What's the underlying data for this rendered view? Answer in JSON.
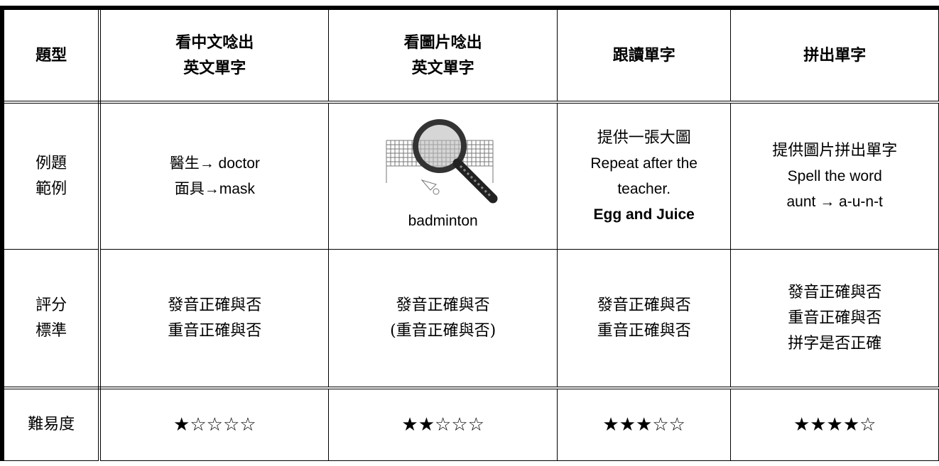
{
  "table": {
    "rows": [
      [
        [
          "題型"
        ],
        [
          "看中文唸出",
          "英文單字"
        ],
        [
          "看圖片唸出",
          "英文單字"
        ],
        [
          "跟讀單字"
        ],
        [
          "拼出單字"
        ]
      ],
      [
        [
          "例題",
          "範例"
        ],
        [
          "醫生→ doctor",
          "面具→mask"
        ],
        [
          "badminton"
        ],
        [
          "提供一張大圖",
          "Repeat after the",
          "teacher.",
          "Egg and Juice"
        ],
        [
          "提供圖片拼出單字",
          "Spell the word",
          "aunt → a-u-n-t"
        ]
      ],
      [
        [
          "評分",
          "標準"
        ],
        [
          "發音正確與否",
          "重音正確與否"
        ],
        [
          "發音正確與否",
          "(重音正確與否)"
        ],
        [
          "發音正確與否",
          "重音正確與否"
        ],
        [
          "發音正確與否",
          "重音正確與否",
          "拼字是否正確"
        ]
      ],
      [
        [
          "難易度"
        ],
        [
          "★☆☆☆☆"
        ],
        [
          "★★☆☆☆"
        ],
        [
          "★★★☆☆"
        ],
        [
          "★★★★☆"
        ]
      ]
    ]
  }
}
